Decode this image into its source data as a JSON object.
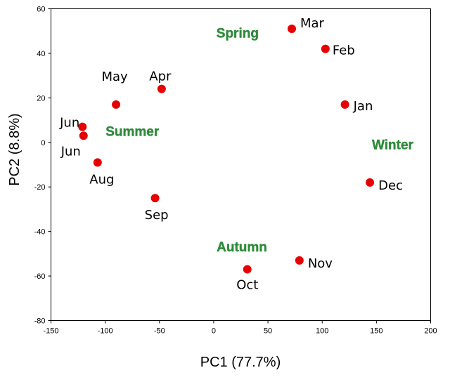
{
  "chart_data": {
    "type": "scatter",
    "title": "",
    "xlabel": "PC1 (77.7%)",
    "ylabel": "PC2 (8.8%)",
    "xlim": [
      -150,
      200
    ],
    "ylim": [
      -80,
      60
    ],
    "x_ticks": [
      -150,
      -100,
      -50,
      0,
      50,
      100,
      150,
      200
    ],
    "y_ticks": [
      -80,
      -60,
      -40,
      -20,
      0,
      20,
      40,
      60
    ],
    "grid": false,
    "marker_color": "#e60000",
    "series": [
      {
        "points": [
          {
            "label": "Jan",
            "x": 121,
            "y": 17
          },
          {
            "label": "Feb",
            "x": 103,
            "y": 42
          },
          {
            "label": "Mar",
            "x": 72,
            "y": 51
          },
          {
            "label": "Apr",
            "x": -48,
            "y": 24
          },
          {
            "label": "May",
            "x": -90,
            "y": 17
          },
          {
            "label": "Jun",
            "x": -121,
            "y": 7
          },
          {
            "label": "Jun",
            "x": -120,
            "y": 3
          },
          {
            "label": "Aug",
            "x": -107,
            "y": -9
          },
          {
            "label": "Sep",
            "x": -54,
            "y": -25
          },
          {
            "label": "Oct",
            "x": 31,
            "y": -57
          },
          {
            "label": "Nov",
            "x": 79,
            "y": -53
          },
          {
            "label": "Dec",
            "x": 144,
            "y": -18
          }
        ]
      }
    ],
    "annotations": [
      {
        "text": "Spring",
        "x": 22,
        "y": 47,
        "color": "#2e8b3a"
      },
      {
        "text": "Summer",
        "x": -75,
        "y": 3,
        "color": "#2e8b3a"
      },
      {
        "text": "Autumn",
        "x": 26,
        "y": -49,
        "color": "#2e8b3a"
      },
      {
        "text": "Winter",
        "x": 165,
        "y": -3,
        "color": "#2e8b3a"
      }
    ]
  }
}
